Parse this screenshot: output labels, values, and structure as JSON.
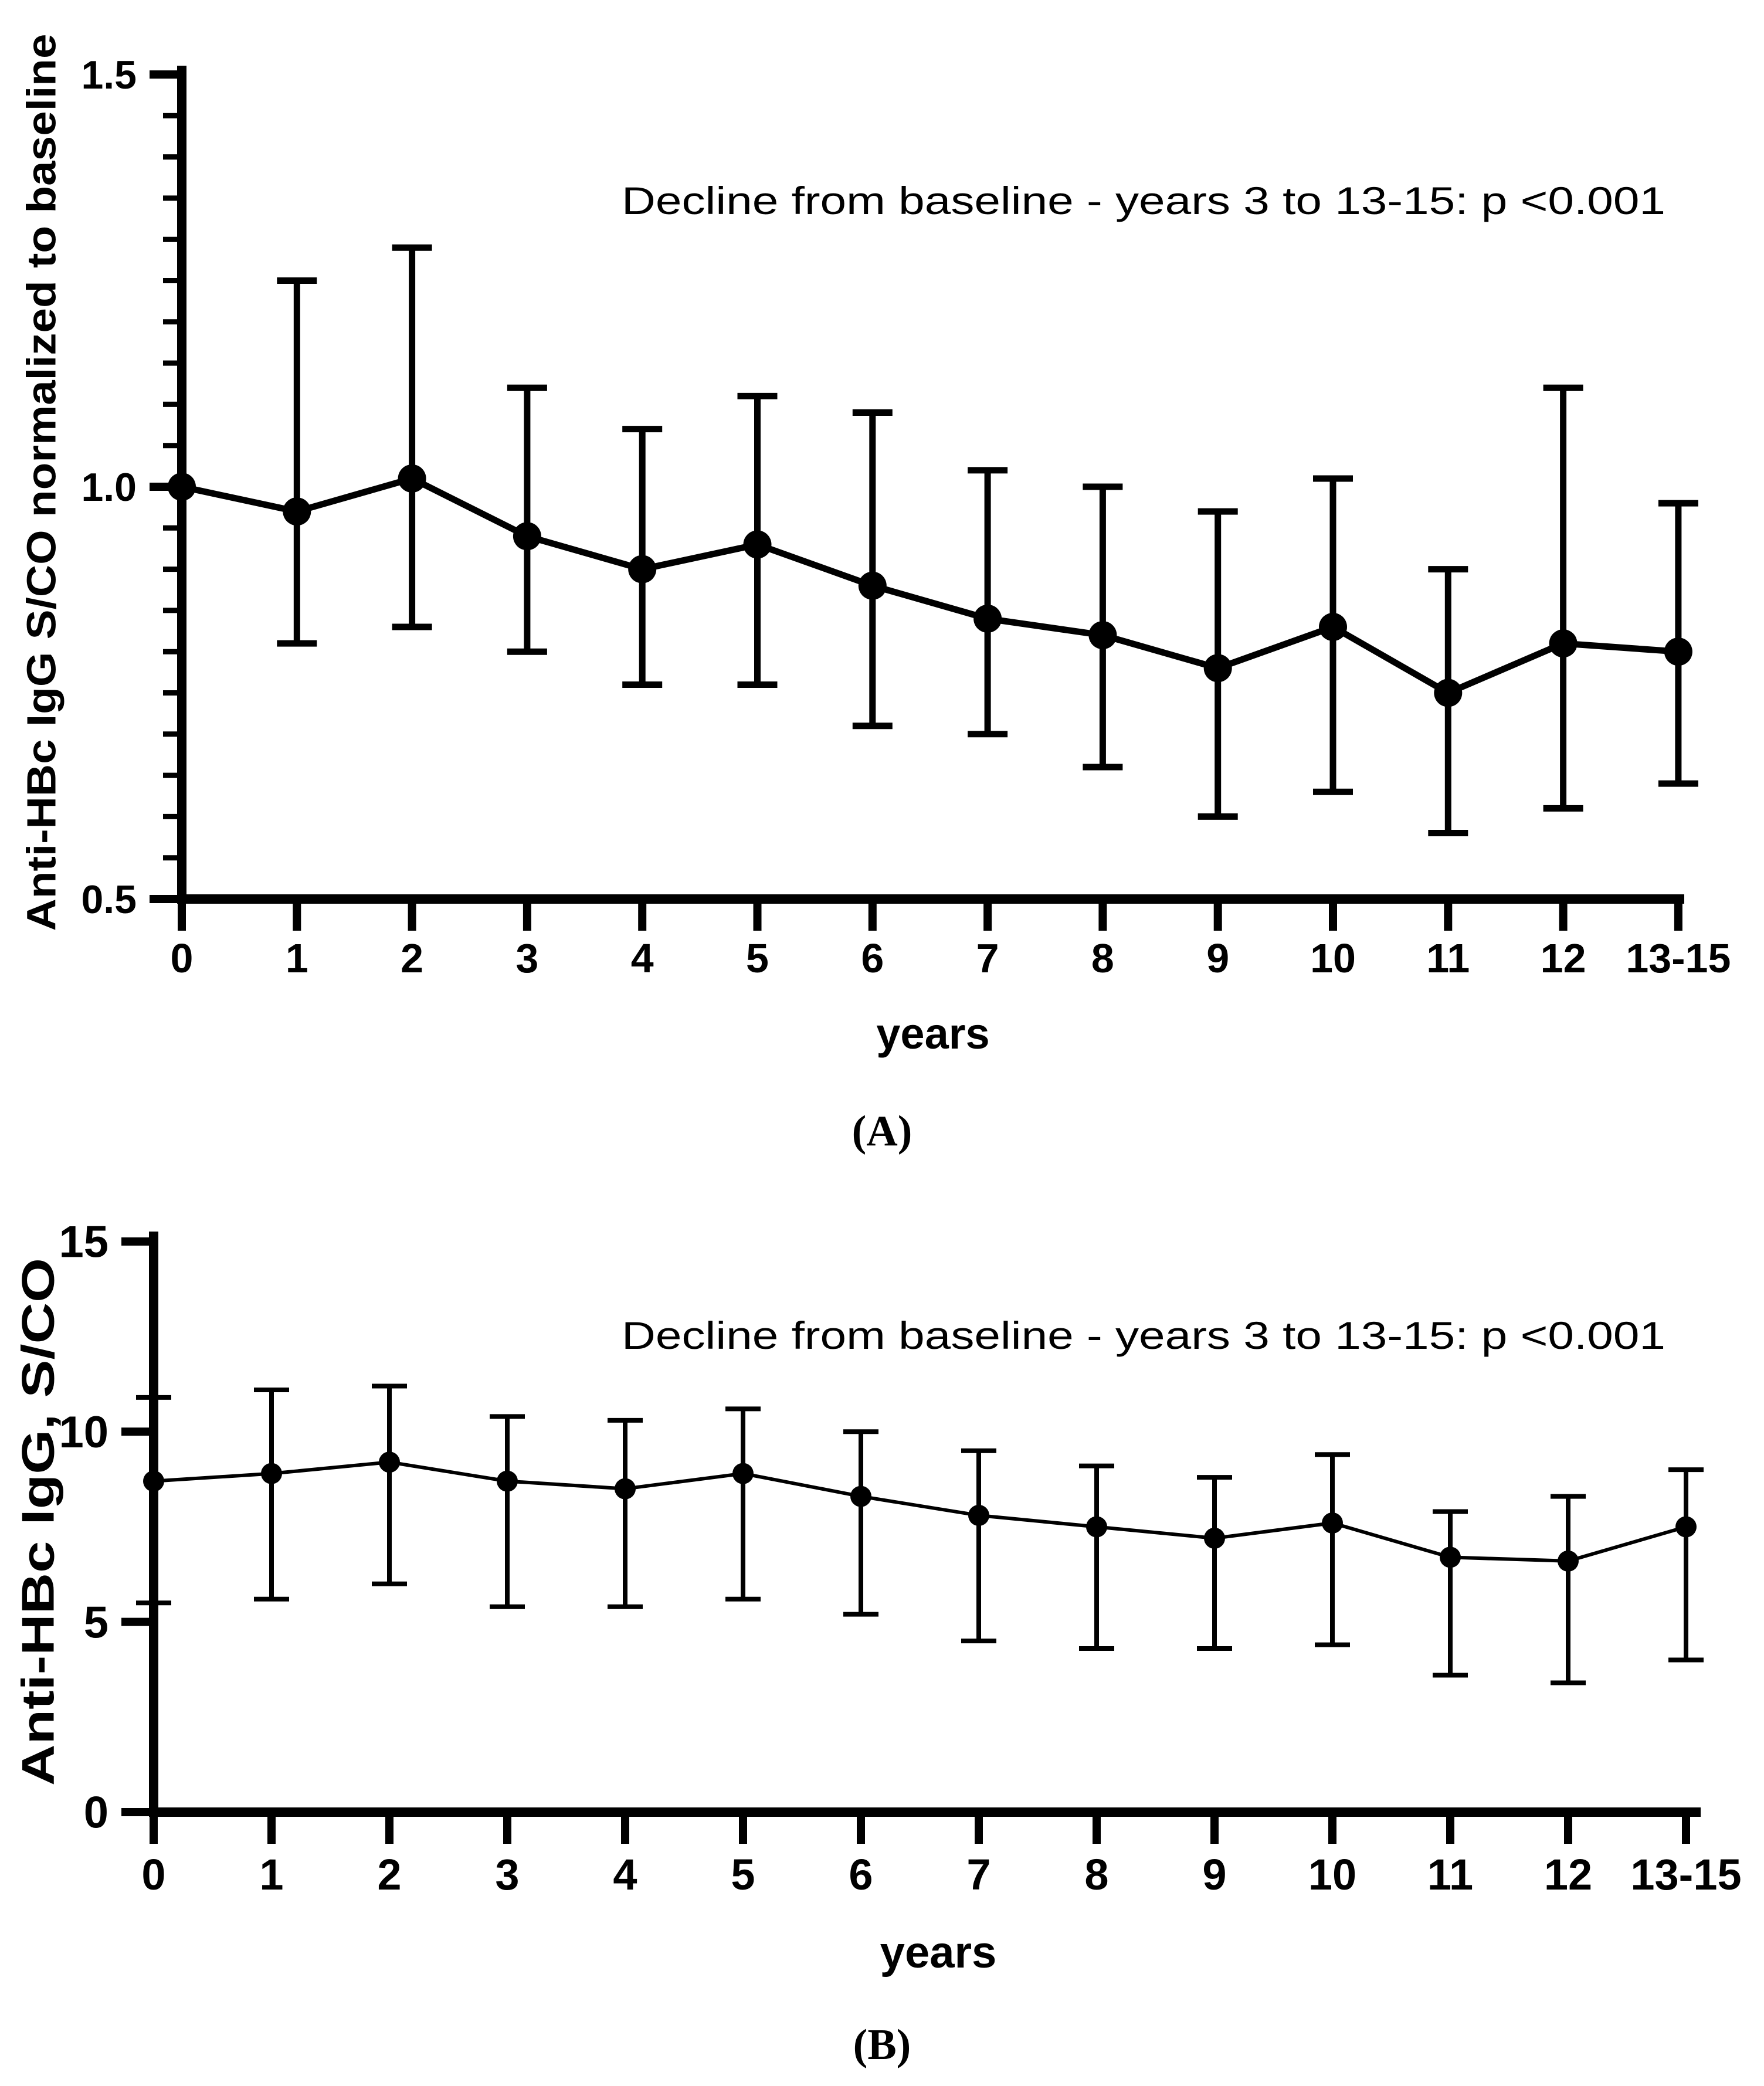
{
  "figure": {
    "background": "#ffffff",
    "ink": "#000000"
  },
  "chart_data": [
    {
      "panel": "A",
      "type": "line",
      "caption": "(A)",
      "annotation": "Decline from baseline - years 3 to 13-15: p <0.001",
      "xlabel": "years",
      "ylabel": "Anti-HBc IgG S/CO normalized to baseline",
      "ylim": [
        0.5,
        1.5
      ],
      "y_major_ticks": [
        {
          "value": 1.5,
          "label": "1.5"
        },
        {
          "value": 1.0,
          "label": "1.0"
        },
        {
          "value": 0.5,
          "label": "0.5"
        }
      ],
      "y_minor_tick_step": 0.05,
      "grid": false,
      "legend": false,
      "categories": [
        "0",
        "1",
        "2",
        "3",
        "4",
        "5",
        "6",
        "7",
        "8",
        "9",
        "10",
        "11",
        "12",
        "13-15"
      ],
      "values": [
        1.0,
        0.97,
        1.01,
        0.94,
        0.9,
        0.93,
        0.88,
        0.84,
        0.82,
        0.78,
        0.83,
        0.75,
        0.81,
        0.8
      ],
      "error_low": [
        null,
        0.81,
        0.83,
        0.8,
        0.76,
        0.76,
        0.71,
        0.7,
        0.66,
        0.6,
        0.63,
        0.58,
        0.61,
        0.64
      ],
      "error_high": [
        null,
        1.25,
        1.29,
        1.12,
        1.07,
        1.11,
        1.09,
        1.02,
        1.0,
        0.97,
        1.01,
        0.9,
        1.12,
        0.98
      ]
    },
    {
      "panel": "B",
      "type": "line",
      "caption": "(B)",
      "annotation": "Decline from baseline - years 3 to 13-15: p <0.001",
      "xlabel": "years",
      "ylabel": "Anti-HBc IgG, S/CO",
      "ylim": [
        0,
        15
      ],
      "y_major_ticks": [
        {
          "value": 15,
          "label": "15"
        },
        {
          "value": 10,
          "label": "10"
        },
        {
          "value": 5,
          "label": "5"
        },
        {
          "value": 0,
          "label": "0"
        }
      ],
      "y_minor_tick_step": null,
      "grid": false,
      "legend": false,
      "categories": [
        "0",
        "1",
        "2",
        "3",
        "4",
        "5",
        "6",
        "7",
        "8",
        "9",
        "10",
        "11",
        "12",
        "13-15"
      ],
      "values": [
        8.7,
        8.9,
        9.2,
        8.7,
        8.5,
        8.9,
        8.3,
        7.8,
        7.5,
        7.2,
        7.6,
        6.7,
        6.6,
        7.5
      ],
      "error_low": [
        5.5,
        5.6,
        6.0,
        5.4,
        5.4,
        5.6,
        5.2,
        4.5,
        4.3,
        4.3,
        4.4,
        3.6,
        3.4,
        4.0
      ],
      "error_high": [
        10.9,
        11.1,
        11.2,
        10.4,
        10.3,
        10.6,
        10.0,
        9.5,
        9.1,
        8.8,
        9.4,
        7.9,
        8.3,
        9.0
      ]
    }
  ]
}
